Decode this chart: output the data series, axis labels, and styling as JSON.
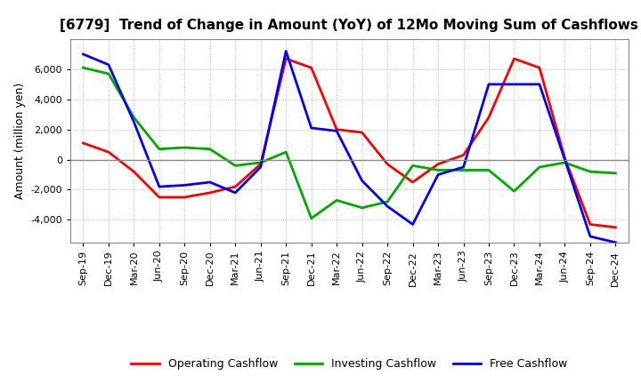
{
  "title": "[6779]  Trend of Change in Amount (YoY) of 12Mo Moving Sum of Cashflows",
  "ylabel": "Amount (million yen)",
  "x_labels": [
    "Sep-19",
    "Dec-19",
    "Mar-20",
    "Jun-20",
    "Sep-20",
    "Dec-20",
    "Mar-21",
    "Jun-21",
    "Sep-21",
    "Dec-21",
    "Mar-22",
    "Jun-22",
    "Sep-22",
    "Dec-22",
    "Mar-23",
    "Jun-23",
    "Sep-23",
    "Dec-23",
    "Mar-24",
    "Jun-24",
    "Sep-24",
    "Dec-24"
  ],
  "operating": [
    1100,
    500,
    -800,
    -2500,
    -2500,
    -2200,
    -1800,
    -300,
    6700,
    6100,
    2000,
    1800,
    -300,
    -1500,
    -300,
    300,
    2800,
    6700,
    6100,
    100,
    -4300,
    -4500
  ],
  "investing": [
    6100,
    5700,
    2800,
    700,
    800,
    700,
    -400,
    -200,
    500,
    -3900,
    -2700,
    -3200,
    -2800,
    -400,
    -700,
    -700,
    -700,
    -2100,
    -500,
    -200,
    -800,
    -900
  ],
  "free": [
    7000,
    6300,
    2500,
    -1800,
    -1700,
    -1500,
    -2200,
    -500,
    7200,
    2100,
    1900,
    -1400,
    -3100,
    -4300,
    -1000,
    -500,
    5000,
    5000,
    5000,
    0,
    -5100,
    -5500
  ],
  "operating_color": "#ff0000",
  "investing_color": "#00aa00",
  "free_color": "#0000ff",
  "ylim": [
    -5500,
    8000
  ],
  "yticks": [
    -4000,
    -2000,
    0,
    2000,
    4000,
    6000
  ],
  "background_color": "#ffffff",
  "grid_color": "#aaaaaa",
  "line_width": 2.0,
  "title_fontsize": 11,
  "ylabel_fontsize": 9,
  "tick_fontsize": 8
}
